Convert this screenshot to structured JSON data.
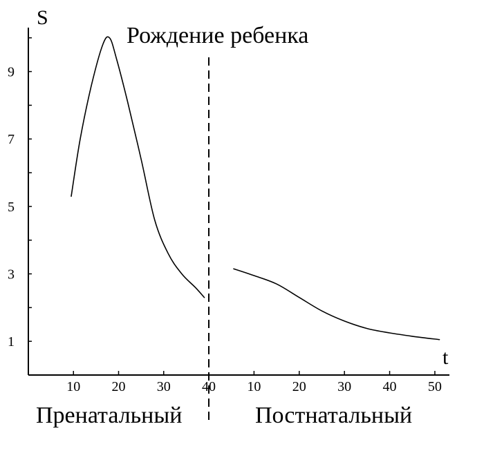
{
  "chart_data": {
    "type": "line",
    "ylabel": "S",
    "xlabel": "t",
    "ylim": [
      0,
      10.2
    ],
    "yticks": [
      1,
      3,
      5,
      7,
      9
    ],
    "grid": false,
    "birth_label": "Рождение ребенка",
    "birth_marker_label": "40",
    "segments": [
      {
        "name": "Пренатальный",
        "xlim": [
          0,
          40
        ],
        "xticks": [
          10,
          20,
          30
        ],
        "x": [
          9.5,
          11.5,
          14,
          16.5,
          18,
          19.5,
          22,
          25,
          28,
          31,
          34,
          37,
          39
        ],
        "y": [
          5.3,
          7.0,
          8.6,
          9.8,
          10.0,
          9.4,
          8.1,
          6.4,
          4.6,
          3.6,
          3.0,
          2.6,
          2.3
        ]
      },
      {
        "name": "Постнатальный",
        "xlim": [
          0,
          52
        ],
        "xticks": [
          10,
          20,
          30,
          40,
          50
        ],
        "x": [
          5.5,
          10,
          15,
          20,
          25,
          30,
          35,
          40,
          45,
          51
        ],
        "y": [
          3.15,
          2.95,
          2.7,
          2.3,
          1.9,
          1.6,
          1.38,
          1.25,
          1.15,
          1.05
        ]
      }
    ]
  }
}
